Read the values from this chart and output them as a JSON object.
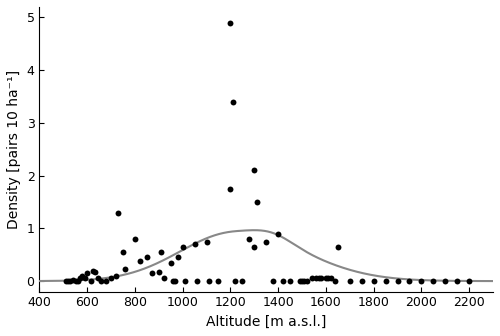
{
  "scatter_x": [
    510,
    520,
    530,
    540,
    555,
    560,
    570,
    580,
    590,
    600,
    615,
    625,
    635,
    645,
    660,
    680,
    700,
    720,
    730,
    750,
    760,
    800,
    820,
    850,
    870,
    900,
    910,
    920,
    950,
    960,
    970,
    980,
    1000,
    1010,
    1050,
    1060,
    1100,
    1110,
    1150,
    1200,
    1200,
    1210,
    1220,
    1250,
    1280,
    1300,
    1300,
    1310,
    1350,
    1380,
    1400,
    1420,
    1450,
    1490,
    1500,
    1510,
    1520,
    1540,
    1560,
    1570,
    1580,
    1600,
    1610,
    1620,
    1640,
    1650,
    1700,
    1750,
    1800,
    1850,
    1900,
    1950,
    2000,
    2050,
    2100,
    2150,
    2200
  ],
  "scatter_y": [
    0.0,
    0.0,
    0.0,
    0.02,
    0.0,
    0.0,
    0.05,
    0.1,
    0.05,
    0.15,
    0.0,
    0.2,
    0.18,
    0.05,
    0.0,
    0.0,
    0.05,
    0.1,
    1.3,
    0.55,
    0.22,
    0.8,
    0.38,
    0.45,
    0.15,
    0.18,
    0.55,
    0.05,
    0.35,
    0.0,
    0.0,
    0.45,
    0.65,
    0.0,
    0.7,
    0.0,
    0.75,
    0.0,
    0.0,
    4.9,
    1.75,
    3.4,
    0.0,
    0.0,
    0.8,
    0.65,
    2.1,
    1.5,
    0.75,
    0.0,
    0.9,
    0.0,
    0.0,
    0.0,
    0.0,
    0.0,
    0.0,
    0.05,
    0.05,
    0.05,
    0.05,
    0.05,
    0.05,
    0.05,
    0.0,
    0.65,
    0.0,
    0.0,
    0.0,
    0.0,
    0.0,
    0.0,
    0.0,
    0.0,
    0.0,
    0.0,
    0.0
  ],
  "xlim": [
    400,
    2300
  ],
  "ylim": [
    -0.2,
    5.2
  ],
  "xticks": [
    400,
    600,
    800,
    1000,
    1200,
    1400,
    1600,
    1800,
    2000,
    2200
  ],
  "yticks": [
    0,
    1,
    2,
    3,
    4,
    5
  ],
  "xlabel": "Altitude [m a.s.l.]",
  "ylabel": "Density [pairs 10 ha⁻¹]",
  "dot_color": "#000000",
  "dot_size": 18,
  "curve_color": "#888888",
  "curve_peak_x": 1220,
  "curve_peak_y": 0.93,
  "curve_sigma1": 230,
  "curve_sigma2": 280,
  "background_color": "#ffffff",
  "tick_labelsize": 9,
  "label_fontsize": 10
}
